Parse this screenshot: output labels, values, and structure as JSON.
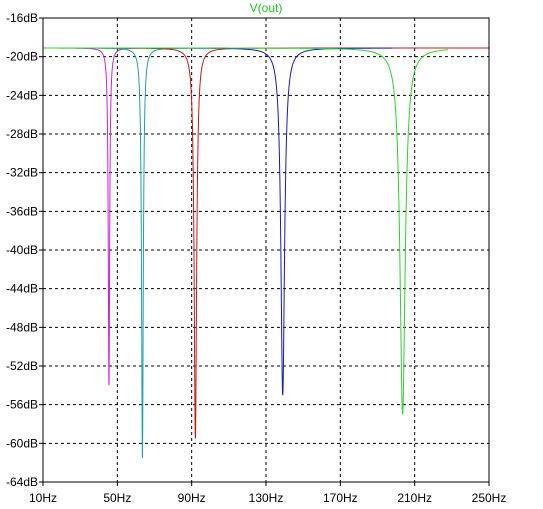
{
  "chart_data": {
    "type": "line",
    "title": "V(out)",
    "title_color": "#22c322",
    "xlabel": "",
    "ylabel": "",
    "x_unit": "Hz",
    "y_unit": "dB",
    "xlim": [
      10,
      250
    ],
    "ylim": [
      -64,
      -16
    ],
    "grid": true,
    "x_tick_labels": [
      "10Hz",
      "50Hz",
      "90Hz",
      "130Hz",
      "170Hz",
      "210Hz",
      "250Hz"
    ],
    "x_tick_values": [
      10,
      50,
      90,
      130,
      170,
      210,
      250
    ],
    "y_tick_labels": [
      "-16dB",
      "-20dB",
      "-24dB",
      "-28dB",
      "-32dB",
      "-36dB",
      "-40dB",
      "-44dB",
      "-48dB",
      "-52dB",
      "-56dB",
      "-60dB",
      "-64dB"
    ],
    "y_tick_values": [
      -16,
      -20,
      -24,
      -28,
      -32,
      -36,
      -40,
      -44,
      -48,
      -52,
      -56,
      -60,
      -64
    ],
    "series": [
      {
        "color": "#d020d0",
        "baseline": -19.1,
        "x_start": 10,
        "x_end": 80,
        "notch_x": 45.5,
        "notch_y": -54.0,
        "half_width": 0.45
      },
      {
        "color": "#20a0a0",
        "baseline": -19.1,
        "x_start": 10,
        "x_end": 110,
        "notch_x": 63.5,
        "notch_y": -61.5,
        "half_width": 0.55
      },
      {
        "color": "#c01818",
        "baseline": -19.1,
        "x_start": 10,
        "x_end": 250,
        "notch_x": 92.0,
        "notch_y": -59.5,
        "half_width": 0.8
      },
      {
        "color": "#1818c0",
        "baseline": -19.1,
        "x_start": 10,
        "x_end": 198,
        "notch_x": 139.0,
        "notch_y": -55.0,
        "half_width": 1.2
      },
      {
        "color": "#30d030",
        "baseline": -19.1,
        "x_start": 10,
        "x_end": 228,
        "notch_x": 203.5,
        "notch_y": -57.0,
        "half_width": 1.7
      }
    ]
  }
}
